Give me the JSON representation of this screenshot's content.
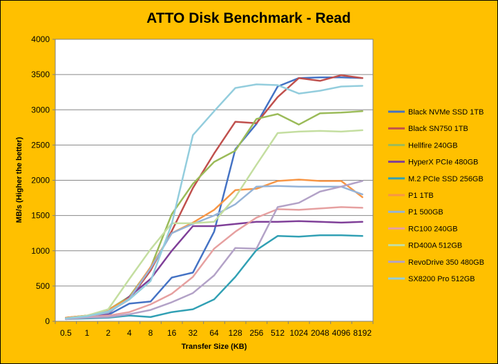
{
  "chart_data": {
    "type": "line",
    "title": "ATTO Disk Benchmark - Read",
    "xlabel": "Transfer Size (KB)",
    "ylabel": "MB/s (Higher the better)",
    "categories": [
      "0.5",
      "1",
      "2",
      "4",
      "8",
      "16",
      "32",
      "64",
      "128",
      "256",
      "512",
      "1024",
      "2048",
      "4096",
      "8192"
    ],
    "ylim": [
      0,
      4000
    ],
    "yticks": [
      0,
      500,
      1000,
      1500,
      2000,
      2500,
      3000,
      3500,
      4000
    ],
    "grid": "horizontal",
    "legend_position": "right",
    "series": [
      {
        "name": "Black NVMe SSD 1TB",
        "color": "#4472C4",
        "values": [
          50,
          70,
          90,
          250,
          280,
          620,
          690,
          1270,
          2440,
          2800,
          3330,
          3450,
          3460,
          3460,
          3450
        ]
      },
      {
        "name": "Black SN750 1TB",
        "color": "#C0504D",
        "values": [
          50,
          80,
          130,
          310,
          720,
          1280,
          1890,
          2380,
          2830,
          2810,
          3180,
          3450,
          3410,
          3490,
          3450
        ]
      },
      {
        "name": "Hellfire 240GB",
        "color": "#9BBB59",
        "values": [
          50,
          80,
          160,
          350,
          760,
          1520,
          1950,
          2260,
          2420,
          2870,
          2940,
          2790,
          2950,
          2960,
          2980
        ]
      },
      {
        "name": "HyperX PCIe 480GB",
        "color": "#7F3F98",
        "values": [
          40,
          60,
          110,
          350,
          600,
          1000,
          1350,
          1350,
          1380,
          1410,
          1410,
          1420,
          1410,
          1400,
          1410
        ]
      },
      {
        "name": "M.2 PCIe SSD 256GB",
        "color": "#31A0B4",
        "values": [
          30,
          40,
          50,
          80,
          60,
          130,
          170,
          310,
          630,
          1010,
          1210,
          1200,
          1220,
          1220,
          1210
        ]
      },
      {
        "name": "P1 1TB",
        "color": "#F79646",
        "values": [
          50,
          80,
          160,
          330,
          770,
          1250,
          1400,
          1580,
          1860,
          1880,
          1990,
          2010,
          1990,
          1990,
          1760
        ]
      },
      {
        "name": "P1 500GB",
        "color": "#95B3D7",
        "values": [
          40,
          70,
          120,
          320,
          750,
          1250,
          1380,
          1500,
          1660,
          1910,
          1920,
          1910,
          1910,
          1910,
          1800
        ]
      },
      {
        "name": "RC100 240GB",
        "color": "#E6A0A0",
        "values": [
          40,
          60,
          80,
          130,
          240,
          390,
          630,
          1030,
          1270,
          1470,
          1590,
          1580,
          1600,
          1620,
          1610
        ]
      },
      {
        "name": "RD400A 512GB",
        "color": "#C4DEA0",
        "values": [
          40,
          80,
          170,
          600,
          1020,
          1390,
          1390,
          1410,
          1760,
          2220,
          2670,
          2690,
          2700,
          2690,
          2710
        ]
      },
      {
        "name": "RevoDrive 350 480GB",
        "color": "#B3A2C7",
        "values": [
          30,
          50,
          60,
          100,
          160,
          270,
          400,
          650,
          1040,
          1030,
          1620,
          1680,
          1840,
          1910,
          1990
        ]
      },
      {
        "name": "SX8200 Pro 512GB",
        "color": "#93CDDD",
        "values": [
          40,
          70,
          140,
          310,
          570,
          1380,
          2640,
          2980,
          3310,
          3360,
          3350,
          3230,
          3270,
          3330,
          3340
        ]
      }
    ]
  }
}
